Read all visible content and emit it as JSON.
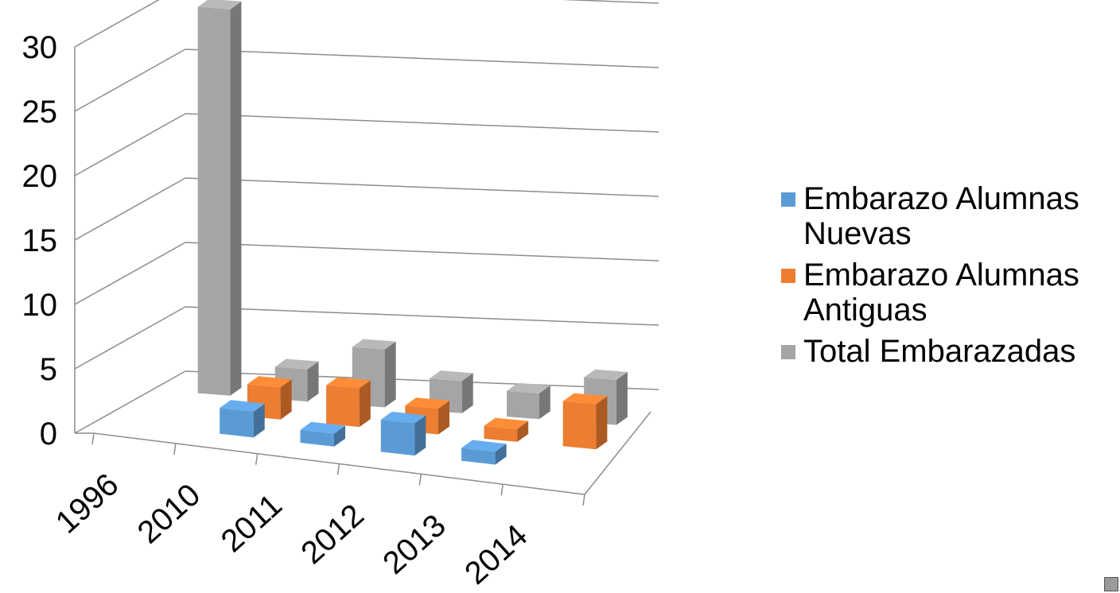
{
  "chart_data": {
    "type": "bar",
    "categories": [
      "1996",
      "2010",
      "2011",
      "2012",
      "2013",
      "2014"
    ],
    "series": [
      {
        "name": "Embarazo Alumnas Nuevas",
        "values": [
          0,
          2,
          1,
          2.5,
          1,
          0
        ],
        "color": "#5b9bd5"
      },
      {
        "name": "Embarazo Alumnas Antiguas",
        "values": [
          0,
          2.5,
          3,
          2,
          1,
          3.5
        ],
        "color": "#ed7d31"
      },
      {
        "name": "Total Embarazadas",
        "values": [
          30,
          2.5,
          4.5,
          2.5,
          2,
          3.5
        ],
        "color": "#a5a5a5"
      }
    ],
    "yticks": [
      "0",
      "5",
      "10",
      "15",
      "20",
      "25",
      "30"
    ],
    "ylim": [
      0,
      30
    ],
    "grid": true,
    "legend_position": "right"
  },
  "legend": {
    "items": [
      {
        "label": "Embarazo Alumnas Nuevas",
        "color": "#5b9bd5"
      },
      {
        "label": "Embarazo Alumnas Antiguas",
        "color": "#ed7d31"
      },
      {
        "label": "Total Embarazadas",
        "color": "#a5a5a5"
      }
    ]
  },
  "corner_icon": "app-icon"
}
